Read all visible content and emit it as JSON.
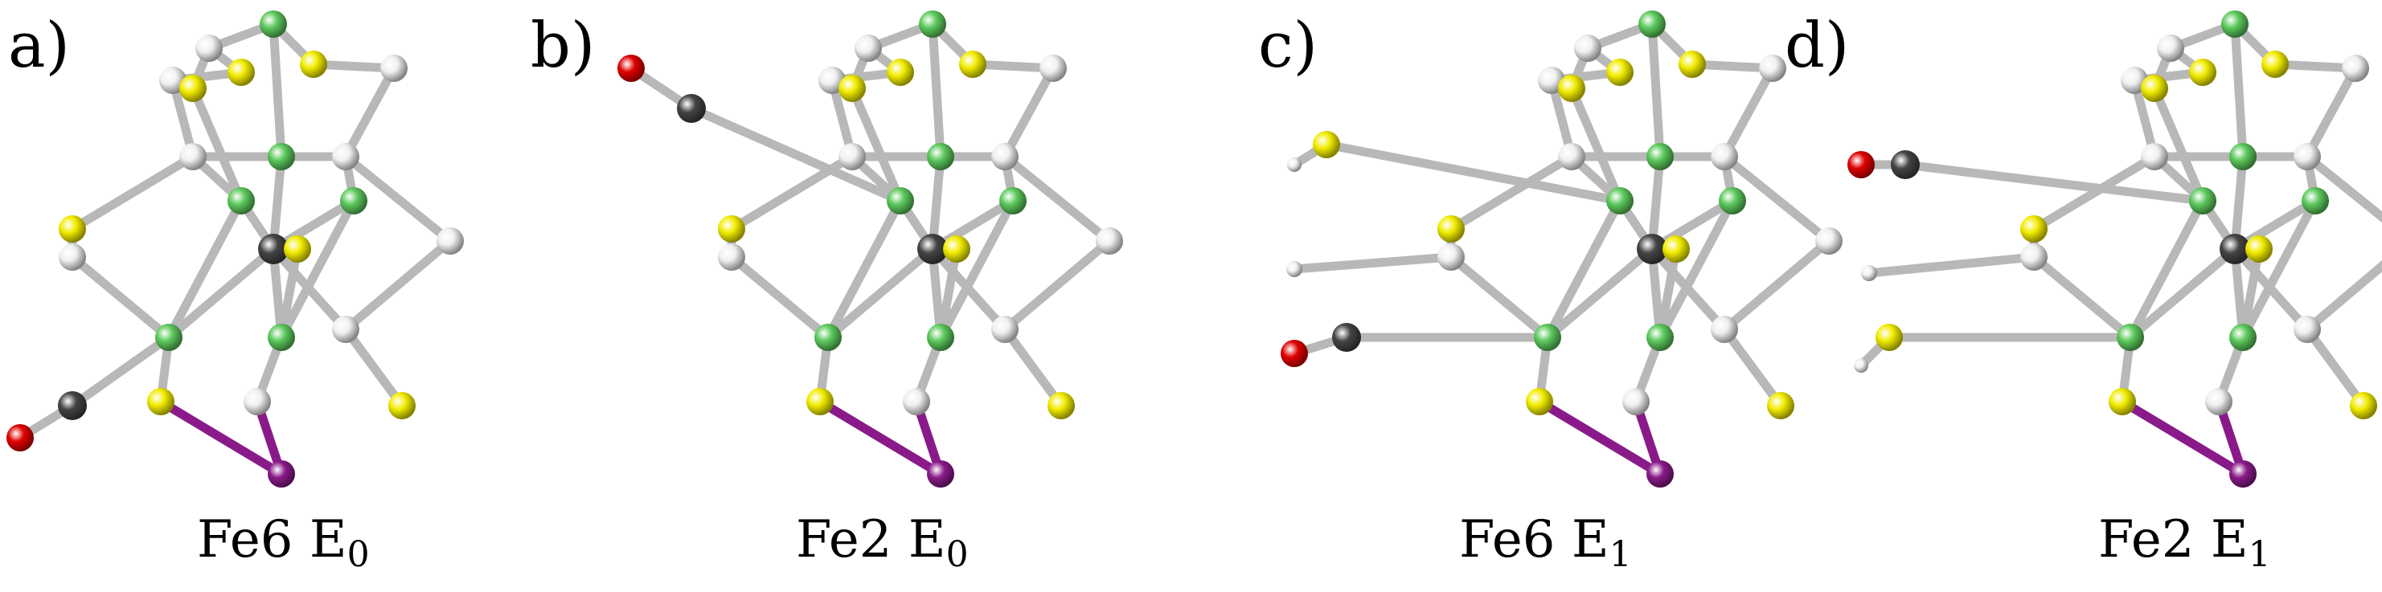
{
  "panels": [
    {
      "letter": "a)",
      "caption_main": "Fe6 E",
      "caption_sub": "0"
    },
    {
      "letter": "b)",
      "caption_main": "Fe2 E",
      "caption_sub": "0"
    },
    {
      "letter": "c)",
      "caption_main": "Fe6 E",
      "caption_sub": "1"
    },
    {
      "letter": "d)",
      "caption_main": "Fe2 E",
      "caption_sub": "1"
    }
  ],
  "colors": {
    "green_atom": "#5cc95c",
    "white_atom": "#f0f0f0",
    "yellow_atom": "#f2ec00",
    "grey_atom": "#444444",
    "red_atom": "#e00000",
    "purple_atom": "#8a1a8a",
    "bond": "#b8b8b8"
  }
}
